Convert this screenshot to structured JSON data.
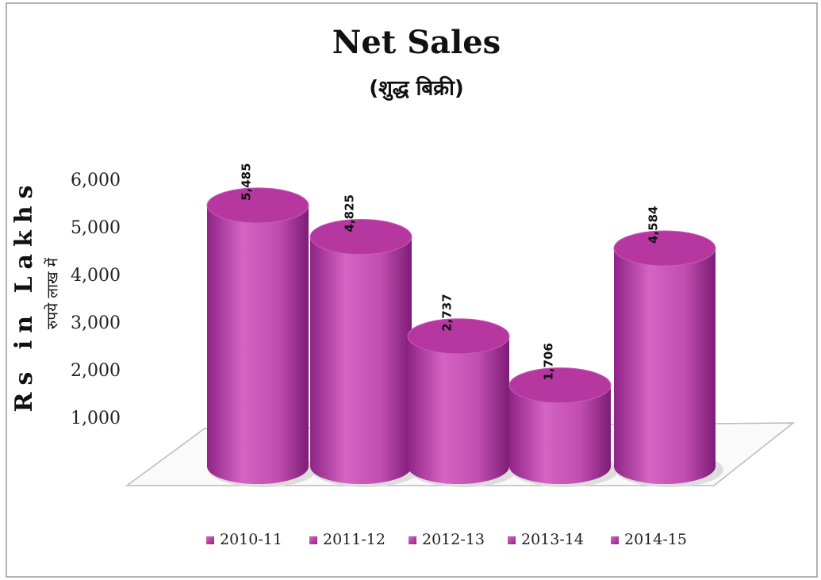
{
  "chart_data": {
    "type": "bar",
    "title": "Net Sales",
    "subtitle": "(शुद्ध बिक्री)",
    "y_label": "Rs in Lakhs",
    "y_label_secondary": "रुपये लाख में",
    "categories": [
      "2010-11",
      "2011-12",
      "2012-13",
      "2013-14",
      "2014-15"
    ],
    "values": [
      5485,
      4825,
      2737,
      1706,
      4584
    ],
    "value_labels": [
      "5,485",
      "4,825",
      "2,737",
      "1,706",
      "4,584"
    ],
    "color": "#b5379f",
    "ylim": [
      0,
      6000
    ],
    "yticks": [
      {
        "value": 1000,
        "label": "1,000"
      },
      {
        "value": 2000,
        "label": "2,000"
      },
      {
        "value": 3000,
        "label": "3,000"
      },
      {
        "value": 4000,
        "label": "4,000"
      },
      {
        "value": 5000,
        "label": "5,000"
      },
      {
        "value": 6000,
        "label": "6,000"
      }
    ],
    "legend": "bottom"
  }
}
